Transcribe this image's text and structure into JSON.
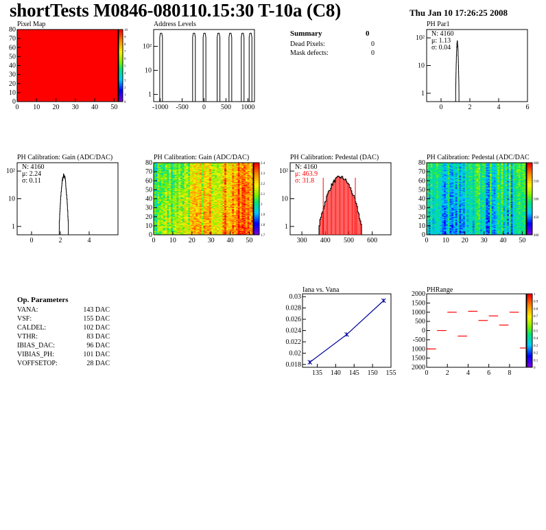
{
  "header": {
    "title": "shortTests M0846-080110.15:30 T-10a (C8)",
    "date": "Thu Jan 10 17:26:25 2008"
  },
  "summary": {
    "title": "Summary",
    "value": "0",
    "rows": [
      {
        "label": "Dead Pixels:",
        "value": "0"
      },
      {
        "label": "Mask defects:",
        "value": "0"
      }
    ]
  },
  "op_params": {
    "title": "Op. Parameters",
    "rows": [
      {
        "label": "VANA:",
        "value": "143 DAC"
      },
      {
        "label": "VSF:",
        "value": "155 DAC"
      },
      {
        "label": "CALDEL:",
        "value": "102 DAC"
      },
      {
        "label": "VTHR:",
        "value": "83 DAC"
      },
      {
        "label": "IBIAS_DAC:",
        "value": "96 DAC"
      },
      {
        "label": "VIBIAS_PH:",
        "value": "101 DAC"
      },
      {
        "label": "VOFFSETOP:",
        "value": "28 DAC"
      }
    ]
  },
  "colors": {
    "red": "#ff0000",
    "blue": "#000099",
    "black": "#000000"
  },
  "chart_data": [
    {
      "id": "pixel-map",
      "type": "heatmap",
      "title": "Pixel Map",
      "xlim": [
        0,
        52
      ],
      "ylim": [
        0,
        80
      ],
      "xticks": [
        "0",
        "10",
        "20",
        "30",
        "40",
        "50"
      ],
      "yticks": [
        "0",
        "10",
        "20",
        "30",
        "40",
        "50",
        "60",
        "70",
        "80"
      ],
      "zlim": [
        0,
        10
      ],
      "zticks": [
        "0",
        "1",
        "2",
        "3",
        "4",
        "5",
        "6",
        "7",
        "8",
        "9",
        "10"
      ],
      "fill": "all pixels = 10"
    },
    {
      "id": "address-levels",
      "type": "bar",
      "title": "Address Levels",
      "xlim": [
        -1150,
        1150
      ],
      "yscale": "log",
      "xticks": [
        "-1000",
        "-500",
        "0",
        "500",
        "1000"
      ],
      "yticks": [
        "1",
        "10",
        "10²"
      ],
      "peaks": [
        -980,
        -230,
        10,
        330,
        600,
        880,
        1060
      ],
      "peak_height": 350
    },
    {
      "id": "ph-par1",
      "type": "bar",
      "title": "PH Par1",
      "xlim": [
        -1,
        6
      ],
      "yscale": "log",
      "xticks": [
        "0",
        "2",
        "4",
        "6"
      ],
      "yticks": [
        "1",
        "10",
        "10²"
      ],
      "stats": {
        "entries": "N: 4160",
        "mean": "μ: 1.13",
        "sigma": "σ: 0.04"
      },
      "mean": 1.13,
      "sigma": 0.04,
      "entries": 4160
    },
    {
      "id": "ph-gain-1d",
      "type": "bar",
      "title": "PH Calibration: Gain (ADC/DAC)",
      "xlim": [
        -1,
        6
      ],
      "yscale": "log",
      "xticks": [
        "0",
        "2",
        "4"
      ],
      "yticks": [
        "1",
        "10",
        "10²"
      ],
      "stats": {
        "entries": "N: 4160",
        "mean": "μ: 2.24",
        "sigma": "σ: 0.11"
      },
      "mean": 2.24,
      "sigma": 0.11,
      "entries": 4160
    },
    {
      "id": "ph-gain-map",
      "type": "heatmap",
      "title": "PH Calibration: Gain (ADC/DAC)",
      "xlim": [
        0,
        52
      ],
      "ylim": [
        0,
        80
      ],
      "xticks": [
        "0",
        "10",
        "20",
        "30",
        "40",
        "50"
      ],
      "yticks": [
        "0",
        "10",
        "20",
        "30",
        "40",
        "50",
        "60",
        "70",
        "80"
      ],
      "zticks": [
        "1.7",
        "1.8",
        "1.9",
        "2",
        "2.1",
        "2.2",
        "2.3",
        "2.4"
      ]
    },
    {
      "id": "ph-pedestal-1d",
      "type": "bar",
      "title": "PH Calibration: Pedestal (DAC)",
      "xlim": [
        250,
        680
      ],
      "yscale": "log",
      "xticks": [
        "300",
        "400",
        "500",
        "600"
      ],
      "yticks": [
        "1",
        "10",
        "10²"
      ],
      "stats": {
        "entries": "N: 4160",
        "mean": "μ: 463.9",
        "sigma": "σ: 31.8"
      },
      "mean": 463.9,
      "sigma": 31.8,
      "entries": 4160,
      "cut_lines": [
        391,
        528
      ]
    },
    {
      "id": "ph-pedestal-map",
      "type": "heatmap",
      "title": "PH Calibration: Pedestal (ADC/DAC",
      "xlim": [
        0,
        52
      ],
      "ylim": [
        0,
        80
      ],
      "xticks": [
        "0",
        "10",
        "20",
        "30",
        "40",
        "50"
      ],
      "yticks": [
        "0",
        "10",
        "20",
        "30",
        "40",
        "50",
        "60",
        "70",
        "80"
      ],
      "zticks": [
        "400",
        "450",
        "500",
        "550",
        "600"
      ]
    },
    {
      "id": "iana-vana",
      "type": "line",
      "title": "Iana vs. Vana",
      "xlim": [
        131,
        155
      ],
      "ylim": [
        0.0175,
        0.0305
      ],
      "xticks": [
        "135",
        "140",
        "145",
        "150",
        "155"
      ],
      "yticks": [
        "0.018",
        "0.02",
        "0.022",
        "0.024",
        "0.026",
        "0.028",
        "0.03"
      ],
      "x": [
        133,
        143,
        153
      ],
      "y": [
        0.0184,
        0.0233,
        0.0293
      ]
    },
    {
      "id": "ph-range",
      "type": "scatter",
      "title": "PHRange",
      "xlim": [
        0,
        9.6
      ],
      "ylim": [
        -2000,
        2000
      ],
      "xticks": [
        "0",
        "2",
        "4",
        "6",
        "8"
      ],
      "yticks": [
        "2000",
        "1500",
        "1000",
        "500",
        "0",
        "-500",
        "1000",
        "1500",
        "2000"
      ],
      "zticks": [
        "0",
        "0.1",
        "0.2",
        "0.3",
        "0.4",
        "0.5",
        "0.6",
        "0.7",
        "0.8",
        "0.9",
        "1"
      ],
      "x": [
        0,
        1,
        2,
        3,
        4,
        5,
        6,
        7,
        8,
        9
      ],
      "y": [
        -1000,
        0,
        1000,
        -300,
        1050,
        550,
        800,
        300,
        1000,
        -950
      ]
    }
  ]
}
